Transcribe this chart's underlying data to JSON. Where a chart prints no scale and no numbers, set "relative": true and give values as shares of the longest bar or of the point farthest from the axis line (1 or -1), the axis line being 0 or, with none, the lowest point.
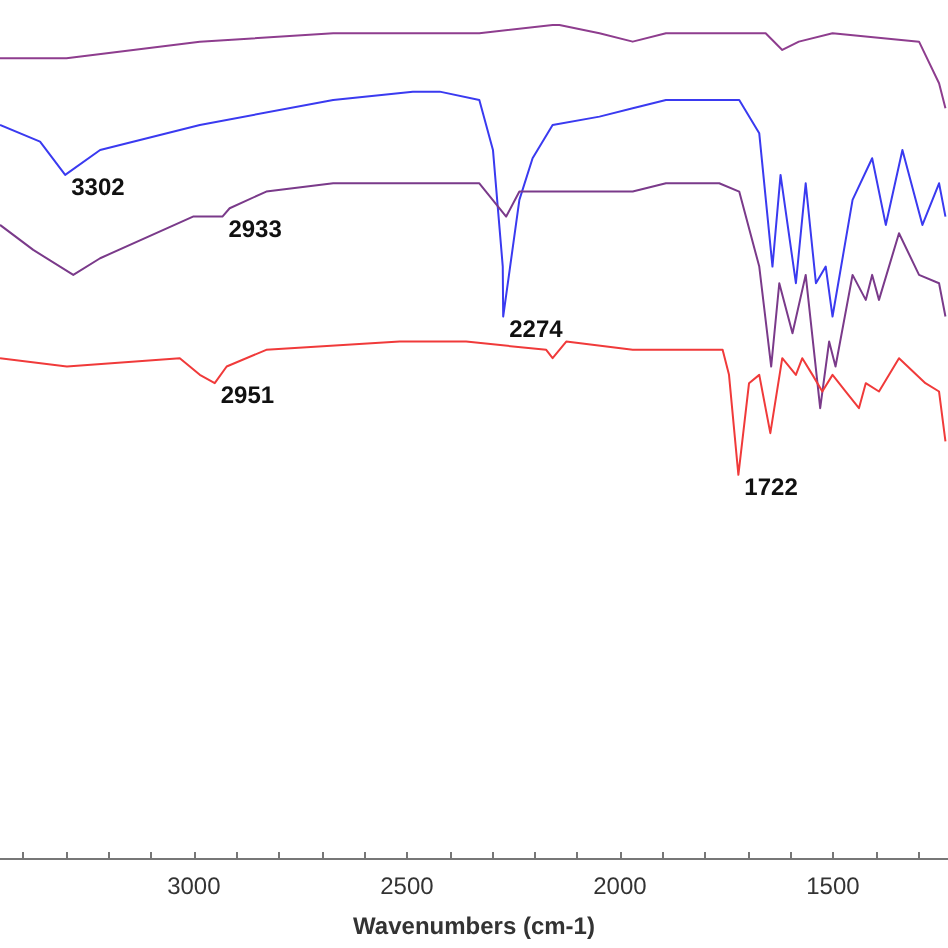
{
  "chart_data": {
    "type": "line",
    "relative": true,
    "xlabel": "Wavenumbers (cm-1)",
    "grid": false,
    "marker": "none",
    "line_style": "solid",
    "xlim": [
      3455,
      1230
    ],
    "xticks": [
      {
        "value": 3400,
        "label": null
      },
      {
        "value": 3300,
        "label": null
      },
      {
        "value": 3200,
        "label": null
      },
      {
        "value": 3100,
        "label": null
      },
      3000,
      {
        "value": 2900,
        "label": null
      },
      {
        "value": 2800,
        "label": null
      },
      {
        "value": 2700,
        "label": null
      },
      {
        "value": 2600,
        "label": null
      },
      2500,
      {
        "value": 2400,
        "label": null
      },
      {
        "value": 2300,
        "label": null
      },
      {
        "value": 2200,
        "label": null
      },
      {
        "value": 2100,
        "label": null
      },
      2000,
      {
        "value": 1900,
        "label": null
      },
      {
        "value": 1800,
        "label": null
      },
      {
        "value": 1700,
        "label": null
      },
      {
        "value": 1600,
        "label": null
      },
      1500,
      {
        "value": 1400,
        "label": null
      },
      {
        "value": 1300,
        "label": null
      }
    ],
    "series": [
      {
        "color": "#8e3d8e",
        "x": [
          3455,
          3299,
          2986,
          2673,
          2361,
          2330,
          2158,
          2142,
          2048,
          1970,
          1892,
          1658,
          1619,
          1580,
          1501,
          1298,
          1251,
          1236
        ],
        "values": [
          0.96,
          0.96,
          0.98,
          0.99,
          0.99,
          0.99,
          1.0,
          1.0,
          0.99,
          0.98,
          0.99,
          0.99,
          0.97,
          0.98,
          0.99,
          0.98,
          0.93,
          0.9
        ]
      },
      {
        "color": "#3a3af0",
        "x": [
          3455,
          3361,
          3302,
          3220,
          2986,
          2673,
          2486,
          2423,
          2330,
          2298,
          2275,
          2274,
          2236,
          2205,
          2158,
          2048,
          1970,
          1892,
          1767,
          1720,
          1673,
          1642,
          1623,
          1587,
          1564,
          1540,
          1517,
          1501,
          1454,
          1408,
          1376,
          1337,
          1290,
          1251,
          1236
        ],
        "values": [
          0.88,
          0.86,
          0.82,
          0.85,
          0.88,
          0.91,
          0.92,
          0.92,
          0.91,
          0.85,
          0.71,
          0.65,
          0.79,
          0.84,
          0.88,
          0.89,
          0.9,
          0.91,
          0.91,
          0.91,
          0.87,
          0.71,
          0.82,
          0.69,
          0.81,
          0.69,
          0.71,
          0.65,
          0.79,
          0.84,
          0.76,
          0.85,
          0.76,
          0.81,
          0.77
        ]
      },
      {
        "color": "#7a3a8a",
        "x": [
          3455,
          3377,
          3283,
          3220,
          3002,
          2933,
          2916,
          2830,
          2673,
          2486,
          2330,
          2267,
          2236,
          2158,
          2048,
          1970,
          1892,
          1767,
          1720,
          1673,
          1645,
          1626,
          1595,
          1564,
          1530,
          1509,
          1494,
          1454,
          1423,
          1408,
          1392,
          1345,
          1298,
          1251,
          1236
        ],
        "values": [
          0.76,
          0.73,
          0.7,
          0.72,
          0.77,
          0.77,
          0.78,
          0.8,
          0.81,
          0.81,
          0.81,
          0.77,
          0.8,
          0.8,
          0.8,
          0.8,
          0.81,
          0.81,
          0.8,
          0.71,
          0.59,
          0.69,
          0.63,
          0.7,
          0.54,
          0.62,
          0.59,
          0.7,
          0.67,
          0.7,
          0.67,
          0.75,
          0.7,
          0.69,
          0.65
        ]
      },
      {
        "color": "#f03a3a",
        "x": [
          3455,
          3298,
          3033,
          2986,
          2951,
          2923,
          2830,
          2517,
          2361,
          2173,
          2158,
          2126,
          1970,
          1892,
          1759,
          1744,
          1722,
          1697,
          1673,
          1647,
          1619,
          1587,
          1572,
          1548,
          1525,
          1501,
          1470,
          1439,
          1423,
          1392,
          1345,
          1283,
          1251,
          1236
        ],
        "values": [
          0.6,
          0.59,
          0.6,
          0.58,
          0.57,
          0.59,
          0.61,
          0.62,
          0.62,
          0.61,
          0.6,
          0.62,
          0.61,
          0.61,
          0.61,
          0.58,
          0.46,
          0.57,
          0.58,
          0.51,
          0.6,
          0.58,
          0.6,
          0.58,
          0.56,
          0.58,
          0.56,
          0.54,
          0.57,
          0.56,
          0.6,
          0.57,
          0.56,
          0.5
        ]
      }
    ],
    "annotations": [
      {
        "text": "3302",
        "x": 3302,
        "y": 0.82
      },
      {
        "text": "2933",
        "x": 2933,
        "y": 0.77
      },
      {
        "text": "2274",
        "x": 2274,
        "y": 0.65
      },
      {
        "text": "2951",
        "x": 2951,
        "y": 0.57
      },
      {
        "text": "1722",
        "x": 1722,
        "y": 0.46
      }
    ]
  }
}
